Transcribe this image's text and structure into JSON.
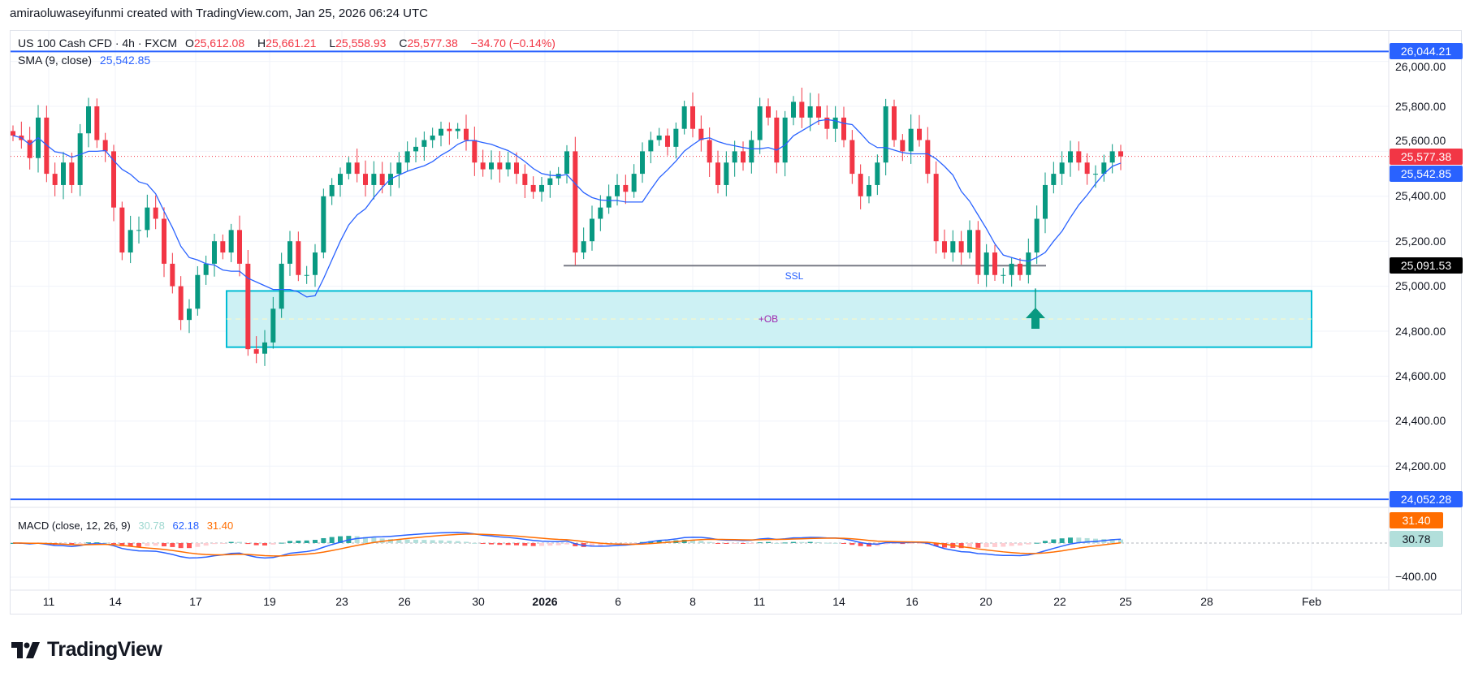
{
  "attribution": "amiraoluwaseyifunmi created with TradingView.com, Jan 25, 2026 06:24 UTC",
  "legend": {
    "symbol": "US 100 Cash CFD · 4h · FXCM",
    "open_label": "O",
    "open": "25,612.08",
    "high_label": "H",
    "high": "25,661.21",
    "low_label": "L",
    "low": "25,558.93",
    "close_label": "C",
    "close": "25,577.38",
    "change": "−34.70 (−0.14%)",
    "sma_label": "SMA (9, close)",
    "sma_value": "25,542.85",
    "macd_label": "MACD (close, 12, 26, 9)",
    "macd_hist": "30.78",
    "macd_line": "62.18",
    "macd_signal": "31.40"
  },
  "logo": "TradingView",
  "colors": {
    "up": "#089981",
    "down": "#f23645",
    "sma": "#2962ff",
    "signal": "#ff6d00",
    "level": "#2962ff",
    "ob_border": "#00bcd4",
    "ob_fill": "#cdf1f4",
    "arrow": "#089981"
  },
  "chart_data": {
    "type": "candlestick",
    "symbol": "US 100 Cash CFD",
    "timeframe": "4h",
    "x_ticks": [
      "11",
      "14",
      "17",
      "19",
      "23",
      "26",
      "30",
      "2026",
      "6",
      "8",
      "11",
      "14",
      "16",
      "20",
      "22",
      "25",
      "28",
      "Feb"
    ],
    "y_ticks": [
      "26,000.00",
      "25,800.00",
      "25,600.00",
      "25,400.00",
      "25,200.00",
      "25,000.00",
      "24,800.00",
      "24,600.00",
      "24,400.00",
      "24,200.00"
    ],
    "ylim": [
      23980,
      26160
    ],
    "closes": [
      25670,
      25650,
      25570,
      25750,
      25500,
      25450,
      25550,
      25450,
      25680,
      25800,
      25650,
      25600,
      25350,
      25150,
      25250,
      25250,
      25350,
      25300,
      25100,
      25000,
      24850,
      24900,
      25050,
      25100,
      25200,
      25150,
      25250,
      25100,
      24720,
      24700,
      24750,
      24900,
      25100,
      25200,
      25050,
      25050,
      25150,
      25400,
      25450,
      25500,
      25550,
      25500,
      25450,
      25500,
      25450,
      25500,
      25550,
      25600,
      25620,
      25650,
      25670,
      25700,
      25690,
      25700,
      25650,
      25550,
      25520,
      25550,
      25520,
      25550,
      25500,
      25450,
      25420,
      25450,
      25480,
      25500,
      25600,
      25150,
      25200,
      25300,
      25350,
      25400,
      25450,
      25420,
      25500,
      25600,
      25650,
      25670,
      25620,
      25700,
      25800,
      25700,
      25650,
      25550,
      25450,
      25550,
      25600,
      25550,
      25650,
      25800,
      25750,
      25550,
      25750,
      25820,
      25750,
      25800,
      25750,
      25700,
      25750,
      25650,
      25500,
      25400,
      25450,
      25550,
      25800,
      25650,
      25600,
      25700,
      25650,
      25500,
      25200,
      25150,
      25200,
      25150,
      25250,
      25050,
      25150,
      25050,
      25050,
      25100,
      25050,
      25150,
      25300,
      25450,
      25500,
      25550,
      25600,
      25550,
      25500,
      25500,
      25550,
      25600,
      25577.38
    ],
    "price_levels": [
      {
        "label": "26,044.21",
        "value": 26044.21,
        "color": "#2962ff"
      },
      {
        "label": "24,052.28",
        "value": 24052.28,
        "color": "#2962ff"
      }
    ],
    "last_price": {
      "label": "25,577.38",
      "value": 25577.38
    },
    "sma": {
      "period": 9,
      "label": "25,542.85"
    },
    "ssl": {
      "label": "SSL",
      "value": 25091.53,
      "price_label": "25,091.53"
    },
    "order_block": {
      "label": "+OB",
      "top": 24979,
      "bottom": 24729
    },
    "macd": {
      "fast": 12,
      "slow": 26,
      "signal": 9,
      "axis_tick": "−400.00",
      "badge_signal": "31.40",
      "badge_hist": "30.78"
    }
  }
}
